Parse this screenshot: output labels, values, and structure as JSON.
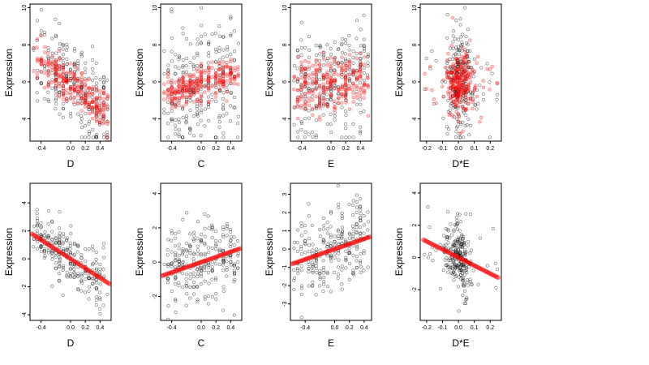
{
  "chart_data": [
    {
      "type": "scatter",
      "xlabel": "D",
      "ylabel": "Expression",
      "xlim": [
        -0.55,
        0.55
      ],
      "ylim": [
        2.8,
        10.2
      ],
      "xticks": [
        "-0.4",
        "0.0",
        "0.2",
        "0.4"
      ],
      "xtick_values": [
        -0.4,
        0.0,
        0.2,
        0.4
      ],
      "yticks": [
        "4",
        "6",
        "8",
        "10"
      ],
      "ytick_values": [
        4,
        6,
        8,
        10
      ],
      "trend": {
        "slope": -3.0,
        "intercept": 5.9
      },
      "spread": {
        "black": 1.2,
        "red": 0.55
      },
      "red_pattern": "fitted",
      "black_y_range": [
        3.0,
        10.0
      ],
      "series": [
        {
          "color": "#000000",
          "marker": "open-circle"
        },
        {
          "color": "#ff0000",
          "marker": "semi-transparent-circle"
        }
      ]
    },
    {
      "type": "scatter",
      "xlabel": "C",
      "ylabel": "Expression",
      "xlim": [
        -0.55,
        0.55
      ],
      "ylim": [
        2.8,
        10.2
      ],
      "xticks": [
        "-0.4",
        "0.0",
        "0.2",
        "0.4"
      ],
      "xtick_values": [
        -0.4,
        0.0,
        0.2,
        0.4
      ],
      "yticks": [
        "4",
        "6",
        "8",
        "10"
      ],
      "ytick_values": [
        4,
        6,
        8,
        10
      ],
      "trend": {
        "slope": 1.2,
        "intercept": 5.9
      },
      "spread": {
        "black": 1.5,
        "red": 0.45
      },
      "red_pattern": "fitted",
      "black_y_range": [
        3.0,
        10.0
      ],
      "series": [
        {
          "color": "#000000",
          "marker": "open-circle"
        },
        {
          "color": "#ff0000",
          "marker": "semi-transparent-circle"
        }
      ]
    },
    {
      "type": "scatter",
      "xlabel": "E",
      "ylabel": "Expression",
      "xlim": [
        -0.55,
        0.55
      ],
      "ylim": [
        2.8,
        10.2
      ],
      "xticks": [
        "-0.4",
        "0.0",
        "0.2",
        "0.4"
      ],
      "xtick_values": [
        -0.4,
        0.0,
        0.2,
        0.4
      ],
      "yticks": [
        "4",
        "6",
        "8",
        "10"
      ],
      "ytick_values": [
        4,
        6,
        8,
        10
      ],
      "trend": {
        "slope": 0.6,
        "intercept": 6.0
      },
      "spread": {
        "black": 1.5,
        "red": 0.8
      },
      "red_pattern": "fitted",
      "black_y_range": [
        3.0,
        10.0
      ],
      "series": [
        {
          "color": "#000000",
          "marker": "open-circle"
        },
        {
          "color": "#ff0000",
          "marker": "semi-transparent-circle"
        }
      ]
    },
    {
      "type": "scatter",
      "xlabel": "D*E",
      "ylabel": "Expression",
      "xlim": [
        -0.24,
        0.27
      ],
      "ylim": [
        2.8,
        10.2
      ],
      "xticks": [
        "-0.2",
        "-0.1",
        "0.0",
        "0.1",
        "0.2"
      ],
      "xtick_values": [
        -0.2,
        -0.1,
        0.0,
        0.1,
        0.2
      ],
      "yticks": [
        "4",
        "6",
        "8",
        "10"
      ],
      "ytick_values": [
        4,
        6,
        8,
        10
      ],
      "trend": {
        "slope": -2.0,
        "intercept": 6.0
      },
      "spread": {
        "black": 1.3,
        "red": 0.9
      },
      "red_pattern": "fitted",
      "x_concentrated": true,
      "black_y_range": [
        3.0,
        10.0
      ],
      "series": [
        {
          "color": "#000000",
          "marker": "open-circle"
        },
        {
          "color": "#ff0000",
          "marker": "semi-transparent-circle"
        }
      ]
    },
    {
      "type": "scatter",
      "xlabel": "D",
      "ylabel": "Expression",
      "xlim": [
        -0.55,
        0.55
      ],
      "ylim": [
        -4.4,
        5.4
      ],
      "xticks": [
        "-0.4",
        "0.0",
        "0.2",
        "0.4"
      ],
      "xtick_values": [
        -0.4,
        0.0,
        0.2,
        0.4
      ],
      "yticks": [
        "-4",
        "-2",
        "0",
        "2",
        "4"
      ],
      "ytick_values": [
        -4,
        -2,
        0,
        2,
        4
      ],
      "trend": {
        "slope": -3.4,
        "intercept": 0.0
      },
      "spread": {
        "black": 1.0,
        "red": 0.0
      },
      "red_pattern": "line",
      "series": [
        {
          "color": "#000000",
          "marker": "open-circle"
        },
        {
          "color": "#ff0000",
          "marker": "semi-transparent-circle"
        }
      ]
    },
    {
      "type": "scatter",
      "xlabel": "C",
      "ylabel": "Expression",
      "xlim": [
        -0.55,
        0.55
      ],
      "ylim": [
        -3.4,
        4.6
      ],
      "xticks": [
        "-0.4",
        "0.0",
        "0.2",
        "0.4"
      ],
      "xtick_values": [
        -0.4,
        0.0,
        0.2,
        0.4
      ],
      "yticks": [
        "-2",
        "0",
        "2",
        "4"
      ],
      "ytick_values": [
        -2,
        0,
        2,
        4
      ],
      "trend": {
        "slope": 1.5,
        "intercept": 0.0
      },
      "spread": {
        "black": 1.2,
        "red": 0.0
      },
      "red_pattern": "line",
      "series": [
        {
          "color": "#000000",
          "marker": "open-circle"
        },
        {
          "color": "#ff0000",
          "marker": "semi-transparent-circle"
        }
      ]
    },
    {
      "type": "scatter",
      "xlabel": "E",
      "ylabel": "Expression",
      "xlim": [
        -0.6,
        0.5
      ],
      "ylim": [
        -3.9,
        3.6
      ],
      "xticks": [
        "-0.4",
        "0.0",
        "0.2",
        "0.4"
      ],
      "xtick_values": [
        -0.4,
        0.0,
        0.2,
        0.4
      ],
      "yticks": [
        "-3",
        "-2",
        "-1",
        "0",
        "1",
        "2",
        "3"
      ],
      "ytick_values": [
        -3,
        -2,
        -1,
        0,
        1,
        2,
        3
      ],
      "trend": {
        "slope": 1.4,
        "intercept": 0.0
      },
      "spread": {
        "black": 1.1,
        "red": 0.0
      },
      "red_pattern": "line",
      "series": [
        {
          "color": "#000000",
          "marker": "open-circle"
        },
        {
          "color": "#ff0000",
          "marker": "semi-transparent-circle"
        }
      ]
    },
    {
      "type": "scatter",
      "xlabel": "D*E",
      "ylabel": "Expression",
      "xlim": [
        -0.24,
        0.27
      ],
      "ylim": [
        -3.9,
        4.6
      ],
      "xticks": [
        "-0.2",
        "-0.1",
        "0.0",
        "0.1",
        "0.2"
      ],
      "xtick_values": [
        -0.2,
        -0.1,
        0.0,
        0.1,
        0.2
      ],
      "yticks": [
        "-2",
        "0",
        "2",
        "4"
      ],
      "ytick_values": [
        -2,
        0,
        2,
        4
      ],
      "trend": {
        "slope": -5.0,
        "intercept": 0.0
      },
      "spread": {
        "black": 1.2,
        "red": 0.0
      },
      "red_pattern": "line",
      "x_concentrated": true,
      "series": [
        {
          "color": "#000000",
          "marker": "open-circle"
        },
        {
          "color": "#ff0000",
          "marker": "semi-transparent-circle"
        }
      ]
    }
  ]
}
